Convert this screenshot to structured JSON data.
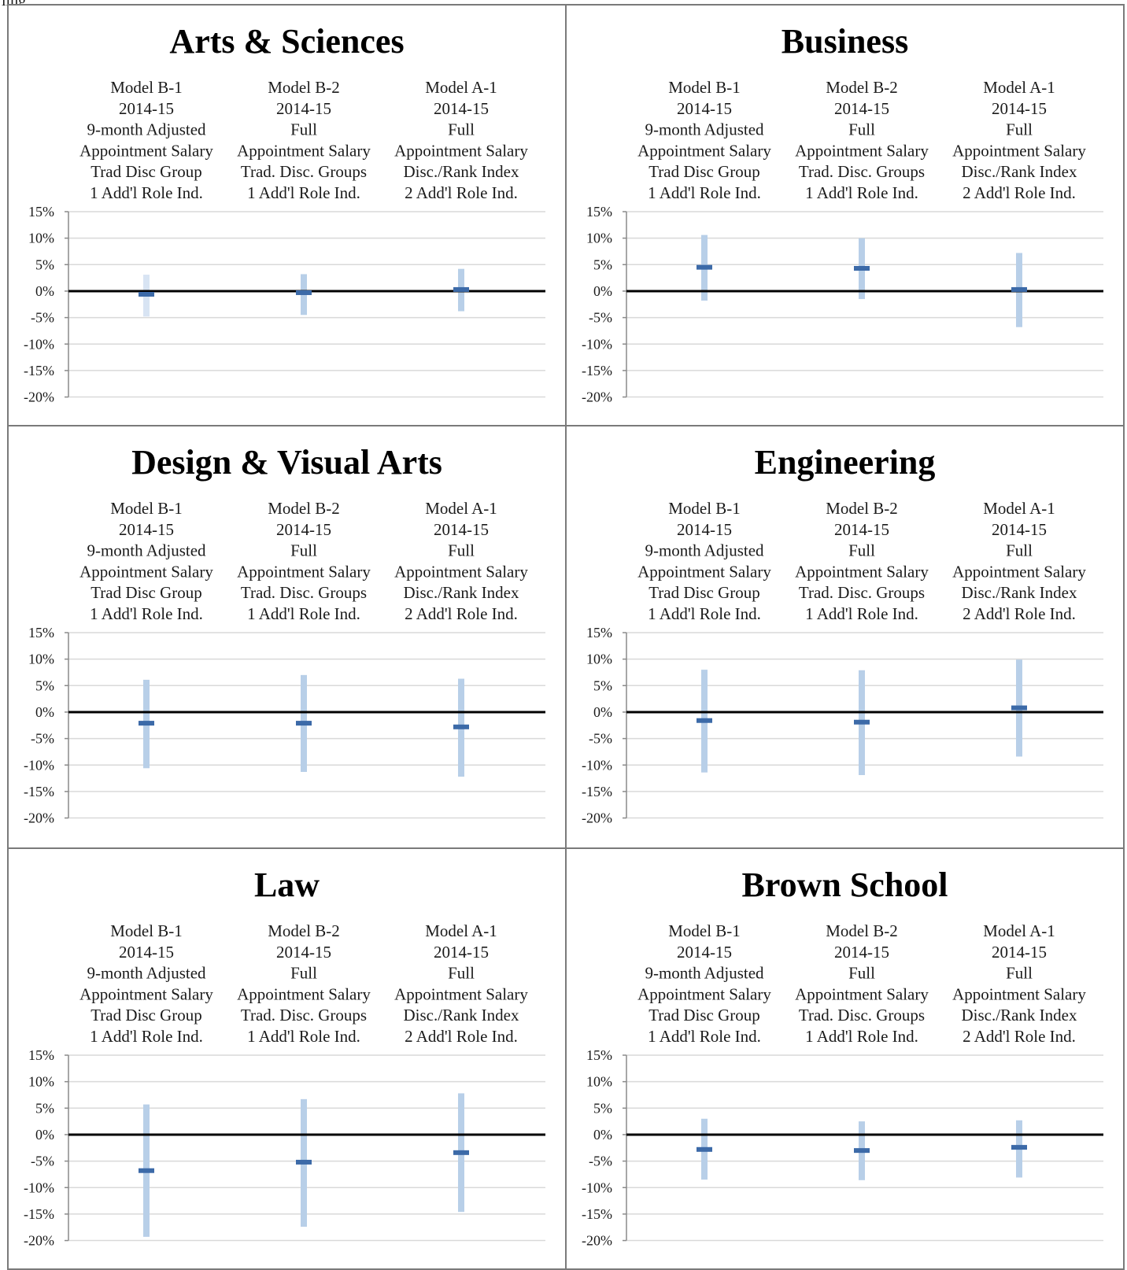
{
  "page": {
    "top_label": "ling"
  },
  "header_lines": [
    [
      "Model B-1",
      "2014-15",
      "9-month Adjusted",
      "Appointment Salary",
      "Trad Disc Group",
      "1 Add'l Role Ind."
    ],
    [
      "Model B-2",
      "2014-15",
      "Full",
      "Appointment Salary",
      "Trad. Disc. Groups",
      "1 Add'l Role Ind."
    ],
    [
      "Model A-1",
      "2014-15",
      "Full",
      "Appointment Salary",
      "Disc./Rank Index",
      "2 Add'l Role Ind."
    ]
  ],
  "y_tick_labels": [
    "15%",
    "10%",
    "5%",
    "0%",
    "-5%",
    "-10%",
    "-15%",
    "-20%"
  ],
  "colors": {
    "bar": "#b8cfe8",
    "bar_faded": "#d8e4f3",
    "point": "#3c6aa8",
    "zero_line": "#000000",
    "grid": "#d9d9d9",
    "axis": "#8a8a8a"
  },
  "chart_data": [
    {
      "type": "range",
      "title": "Arts & Sciences",
      "categories": [
        "Model B-1",
        "Model B-2",
        "Model A-1"
      ],
      "estimate": [
        -0.6,
        -0.3,
        0.3
      ],
      "low": [
        -4.8,
        -4.5,
        -3.8
      ],
      "high": [
        3.1,
        3.2,
        4.2
      ],
      "ylim": [
        -20,
        15
      ],
      "yunit": "%",
      "grid": true
    },
    {
      "type": "range",
      "title": "Business",
      "categories": [
        "Model B-1",
        "Model B-2",
        "Model A-1"
      ],
      "estimate": [
        4.5,
        4.3,
        0.3
      ],
      "low": [
        -1.8,
        -1.5,
        -6.8
      ],
      "high": [
        10.6,
        10.0,
        7.2
      ],
      "ylim": [
        -20,
        15
      ],
      "yunit": "%",
      "grid": true
    },
    {
      "type": "range",
      "title": "Design & Visual Arts",
      "categories": [
        "Model B-1",
        "Model B-2",
        "Model A-1"
      ],
      "estimate": [
        -2.1,
        -2.1,
        -2.8
      ],
      "low": [
        -10.6,
        -11.3,
        -12.2
      ],
      "high": [
        6.1,
        7.0,
        6.3
      ],
      "ylim": [
        -20,
        15
      ],
      "yunit": "%",
      "grid": true
    },
    {
      "type": "range",
      "title": "Engineering",
      "categories": [
        "Model B-1",
        "Model B-2",
        "Model A-1"
      ],
      "estimate": [
        -1.6,
        -1.9,
        0.8
      ],
      "low": [
        -11.4,
        -11.9,
        -8.4
      ],
      "high": [
        8.0,
        7.9,
        9.9
      ],
      "ylim": [
        -20,
        15
      ],
      "yunit": "%",
      "grid": true
    },
    {
      "type": "range",
      "title": "Law",
      "categories": [
        "Model B-1",
        "Model B-2",
        "Model A-1"
      ],
      "estimate": [
        -6.8,
        -5.2,
        -3.4
      ],
      "low": [
        -19.3,
        -17.4,
        -14.6
      ],
      "high": [
        5.7,
        6.7,
        7.8
      ],
      "ylim": [
        -20,
        15
      ],
      "yunit": "%",
      "grid": true
    },
    {
      "type": "range",
      "title": "Brown School",
      "categories": [
        "Model B-1",
        "Model B-2",
        "Model A-1"
      ],
      "estimate": [
        -2.8,
        -3.0,
        -2.4
      ],
      "low": [
        -8.5,
        -8.6,
        -8.1
      ],
      "high": [
        3.0,
        2.5,
        2.7
      ],
      "ylim": [
        -20,
        15
      ],
      "yunit": "%",
      "grid": true
    }
  ]
}
